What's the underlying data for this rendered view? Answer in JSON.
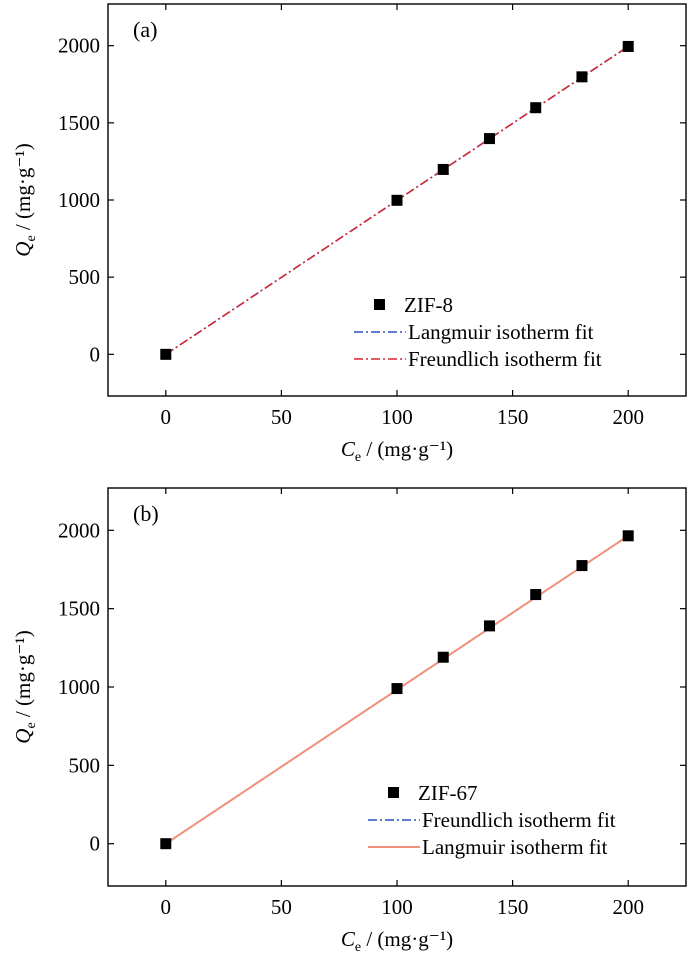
{
  "chart_data": [
    {
      "type": "scatter",
      "panel_label": "(a)",
      "xlabel": "C_e / (mg·g⁻¹)",
      "ylabel": "Q_e / (mg·g⁻¹)",
      "xlim": [
        -25,
        225
      ],
      "ylim": [
        -270,
        2270
      ],
      "xticks": [
        0,
        50,
        100,
        150,
        200
      ],
      "yticks": [
        0,
        500,
        1000,
        1500,
        2000
      ],
      "grid": false,
      "legend_position": "bottom-right",
      "series": [
        {
          "name": "ZIF-8",
          "kind": "marker",
          "color": "#000000",
          "x": [
            0,
            100,
            120,
            140,
            160,
            180,
            200
          ],
          "y": [
            0,
            998,
            1198,
            1398,
            1598,
            1798,
            1995
          ]
        },
        {
          "name": "Langmuir isotherm fit",
          "kind": "line",
          "style": "dash-dot",
          "color": "#2a4fc6",
          "x": [
            0,
            200
          ],
          "y": [
            0,
            1995
          ]
        },
        {
          "name": "Freundlich isotherm fit",
          "kind": "line",
          "style": "dash-dot",
          "color": "#d6262b",
          "x": [
            0,
            200
          ],
          "y": [
            0,
            1995
          ]
        }
      ]
    },
    {
      "type": "scatter",
      "panel_label": "(b)",
      "xlabel": "C_e / (mg·g⁻¹)",
      "ylabel": "Q_e / (mg·g⁻¹)",
      "xlim": [
        -25,
        225
      ],
      "ylim": [
        -270,
        2270
      ],
      "xticks": [
        0,
        50,
        100,
        150,
        200
      ],
      "yticks": [
        0,
        500,
        1000,
        1500,
        2000
      ],
      "grid": false,
      "legend_position": "bottom-right",
      "series": [
        {
          "name": "ZIF-67",
          "kind": "marker",
          "color": "#000000",
          "x": [
            0,
            100,
            120,
            140,
            160,
            180,
            200
          ],
          "y": [
            0,
            990,
            1190,
            1390,
            1590,
            1775,
            1965
          ]
        },
        {
          "name": "Freundlich isotherm fit",
          "kind": "line",
          "style": "dash-dot",
          "color": "#2a4fc6",
          "x": [
            0,
            200
          ],
          "y": [
            0,
            1965
          ]
        },
        {
          "name": "Langmuir isotherm fit",
          "kind": "line",
          "style": "solid",
          "color": "#f0907a",
          "x": [
            0,
            200
          ],
          "y": [
            0,
            1965
          ]
        }
      ]
    }
  ]
}
